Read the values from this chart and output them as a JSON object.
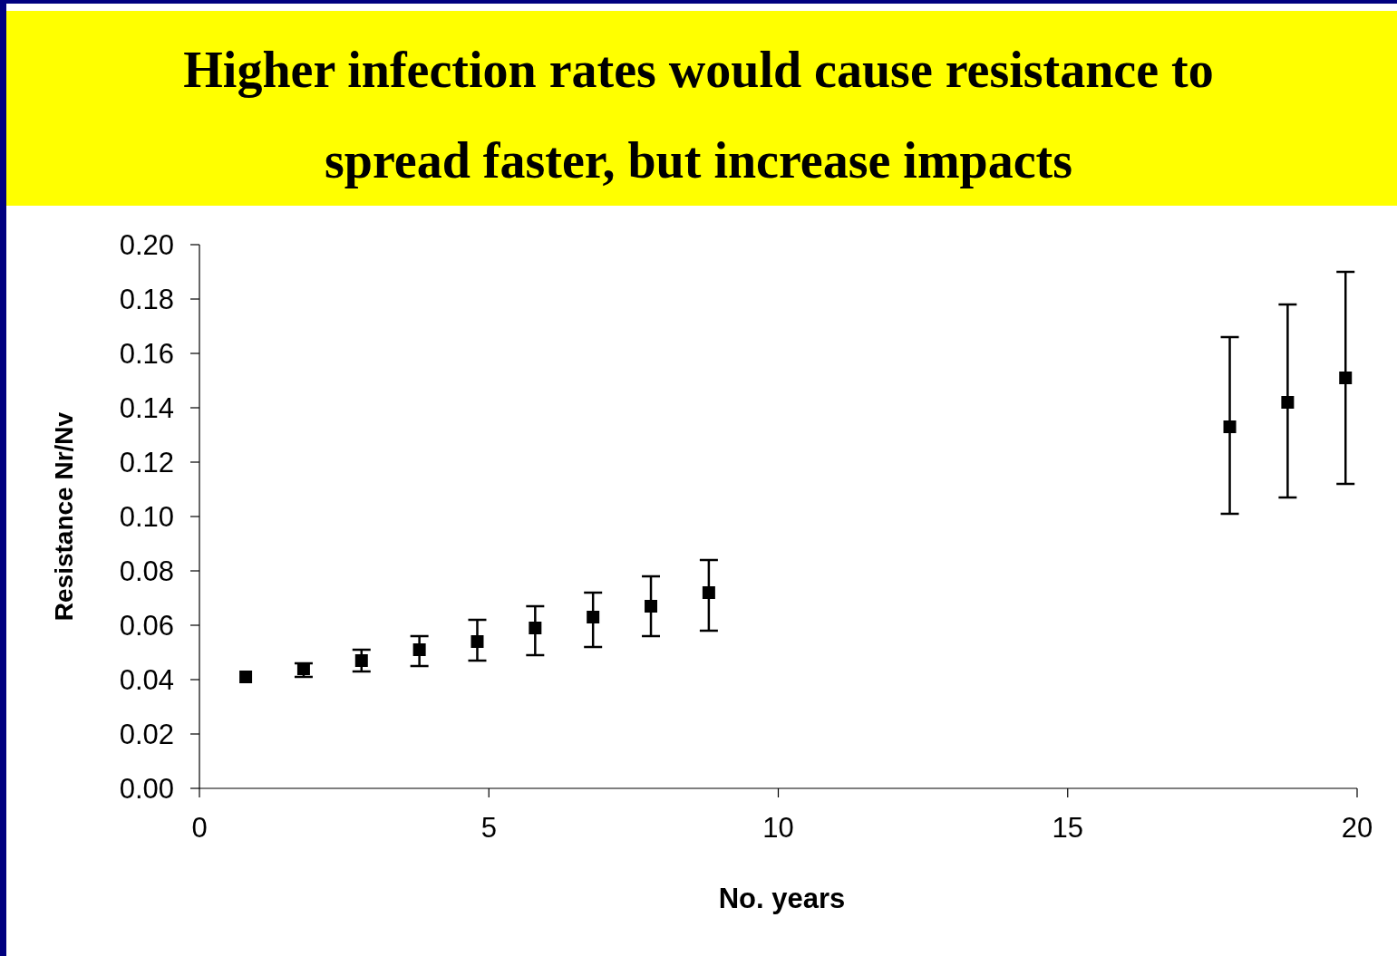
{
  "chart_data": {
    "type": "scatter",
    "title": "Higher infection rates would cause resistance to spread faster, but increase impacts",
    "xlabel": "No. years",
    "ylabel": "Resistance Nr/Nv",
    "x": [
      0.8,
      1.8,
      2.8,
      3.8,
      4.8,
      5.8,
      6.8,
      7.8,
      8.8,
      17.8,
      18.8,
      19.8
    ],
    "values": [
      0.041,
      0.044,
      0.047,
      0.051,
      0.054,
      0.059,
      0.063,
      0.067,
      0.072,
      0.133,
      0.142,
      0.151
    ],
    "errors": [
      null,
      [
        0.041,
        0.046
      ],
      [
        0.043,
        0.051
      ],
      [
        0.045,
        0.056
      ],
      [
        0.047,
        0.062
      ],
      [
        0.049,
        0.067
      ],
      [
        0.052,
        0.072
      ],
      [
        0.056,
        0.078
      ],
      [
        0.058,
        0.084
      ],
      [
        0.101,
        0.166
      ],
      [
        0.107,
        0.178
      ],
      [
        0.112,
        0.19
      ]
    ],
    "color": "#000000",
    "marker": "square",
    "xlim": [
      0,
      20
    ],
    "xticks": [
      0,
      5,
      10,
      15,
      20
    ],
    "ylim": [
      0,
      0.2
    ],
    "yticks": [
      {
        "value": 0,
        "label": "0.00"
      },
      {
        "value": 0.02,
        "label": "0.02"
      },
      {
        "value": 0.04,
        "label": "0.04"
      },
      {
        "value": 0.06,
        "label": "0.06"
      },
      {
        "value": 0.08,
        "label": "0.08"
      },
      {
        "value": 0.1,
        "label": "0.10"
      },
      {
        "value": 0.12,
        "label": "0.12"
      },
      {
        "value": 0.14,
        "label": "0.14"
      },
      {
        "value": 0.16,
        "label": "0.16"
      },
      {
        "value": 0.18,
        "label": "0.18"
      },
      {
        "value": 0.2,
        "label": "0.20"
      }
    ],
    "grid": false
  }
}
